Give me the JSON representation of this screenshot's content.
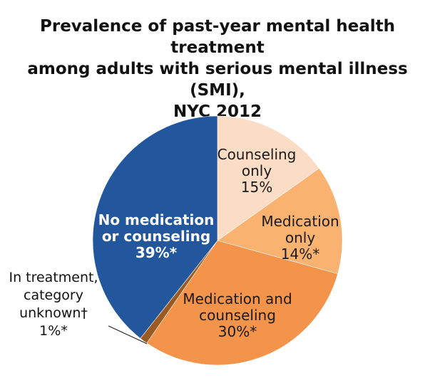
{
  "chart_data": {
    "type": "pie",
    "title": [
      "Prevalence of past-year mental health treatment",
      "among adults with serious mental illness (SMI),",
      "NYC 2012"
    ],
    "slices": [
      {
        "lines": [
          "Counseling",
          "only",
          "15%"
        ],
        "value": 15,
        "color": "#fbdcc5",
        "text_color": "#1a1a1a"
      },
      {
        "lines": [
          "Medication",
          "only",
          "14%*"
        ],
        "value": 14,
        "color": "#f9b26f",
        "text_color": "#1a1a1a"
      },
      {
        "lines": [
          "Medication and",
          "counseling",
          "30%*"
        ],
        "value": 30,
        "color": "#f4944a",
        "text_color": "#1a1a1a"
      },
      {
        "lines": [
          "In treatment,",
          "category",
          "unknown†",
          "1%*"
        ],
        "value": 1,
        "color": "#9a5a22",
        "text_color": "#1a1a1a",
        "outside": true
      },
      {
        "lines": [
          "No medication",
          "or counseling",
          "39%*"
        ],
        "value": 39,
        "color": "#22579e",
        "text_color": "#ffffff"
      }
    ]
  }
}
